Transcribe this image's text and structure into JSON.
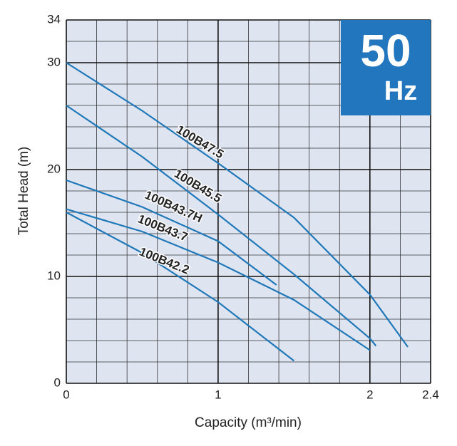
{
  "chart_data": {
    "type": "line",
    "xlabel": "Capacity (m³/min)",
    "ylabel": "Total Head (m)",
    "annotations": [
      "50",
      "Hz"
    ],
    "xlim": [
      0,
      2.4
    ],
    "ylim": [
      0,
      34
    ],
    "xticks": [
      0,
      1,
      2,
      2.4
    ],
    "yticks": [
      0,
      10,
      20,
      30,
      34
    ],
    "xgrid": [
      0.2,
      0.4,
      0.6,
      0.8,
      1.2,
      1.4,
      1.6,
      1.8,
      2.2
    ],
    "ygrid": [
      2,
      4,
      6,
      8,
      12,
      14,
      16,
      18,
      22,
      24,
      26,
      28,
      32
    ],
    "grid": true,
    "series": [
      {
        "name": "100B47.5",
        "color": "#1f78b8",
        "x": [
          0,
          0.5,
          1,
          1.5,
          2,
          2.25
        ],
        "values": [
          30,
          25.5,
          20.6,
          15.5,
          8.3,
          3.4
        ]
      },
      {
        "name": "100B45.5",
        "color": "#1f78b8",
        "x": [
          0,
          0.5,
          1,
          1.5,
          2,
          2.04
        ],
        "values": [
          26,
          21.2,
          15.8,
          10.2,
          4.2,
          3.5
        ]
      },
      {
        "name": "100B43.7H",
        "color": "#1f78b8",
        "x": [
          0,
          0.5,
          1,
          1.385
        ],
        "values": [
          19,
          16.5,
          13.3,
          9.2
        ]
      },
      {
        "name": "100B43.7",
        "color": "#1f78b8",
        "x": [
          0,
          0.5,
          1,
          1.5,
          2
        ],
        "values": [
          16.3,
          14.2,
          11.3,
          7.8,
          3.1
        ]
      },
      {
        "name": "100B42.2",
        "color": "#1f78b8",
        "x": [
          0,
          0.5,
          1,
          1.5
        ],
        "values": [
          16,
          12.2,
          7.6,
          2.1
        ]
      }
    ]
  }
}
